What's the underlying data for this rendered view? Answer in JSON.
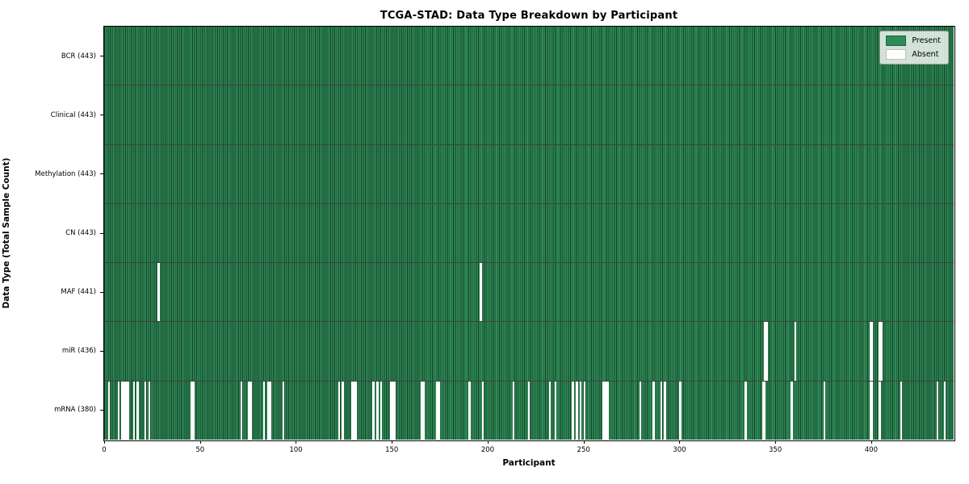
{
  "chart_data": {
    "type": "heatmap",
    "title": "TCGA-STAD: Data Type Breakdown by Participant",
    "xlabel": "Participant",
    "ylabel": "Data Type (Total Sample Count)",
    "n_participants": 443,
    "xlim": [
      0,
      443
    ],
    "x_ticks": [
      0,
      50,
      100,
      150,
      200,
      250,
      300,
      350,
      400
    ],
    "legend_position": "upper right",
    "grid": false,
    "colors": {
      "present": "#2e8b57",
      "absent": "#ffffff"
    },
    "legend_entries": [
      {
        "label": "Present",
        "color": "#2e8b57"
      },
      {
        "label": "Absent",
        "color": "#ffffff"
      }
    ],
    "rows": [
      {
        "name": "BCR",
        "label": "BCR (443)",
        "present_count": 443,
        "absent": []
      },
      {
        "name": "Clinical",
        "label": "Clinical (443)",
        "present_count": 443,
        "absent": []
      },
      {
        "name": "Methylation",
        "label": "Methylation (443)",
        "present_count": 443,
        "absent": []
      },
      {
        "name": "CN",
        "label": "CN (443)",
        "present_count": 443,
        "absent": []
      },
      {
        "name": "MAF",
        "label": "MAF (441)",
        "present_count": 441,
        "absent": [
          28,
          196
        ]
      },
      {
        "name": "miR",
        "label": "miR (436)",
        "present_count": 436,
        "absent": [
          344,
          345,
          360,
          399,
          400,
          404,
          405
        ]
      },
      {
        "name": "mRNA",
        "label": "mRNA (380)",
        "present_count": 380,
        "absent": [
          2,
          7,
          9,
          10,
          11,
          12,
          15,
          17,
          21,
          23,
          45,
          46,
          71,
          75,
          76,
          83,
          85,
          86,
          93,
          122,
          124,
          129,
          130,
          131,
          140,
          142,
          144,
          149,
          150,
          151,
          165,
          166,
          173,
          174,
          190,
          197,
          213,
          221,
          232,
          235,
          244,
          246,
          248,
          250,
          260,
          261,
          262,
          279,
          286,
          290,
          292,
          300,
          334,
          343,
          344,
          358,
          375,
          399,
          400,
          404,
          415,
          434,
          438
        ]
      }
    ]
  }
}
